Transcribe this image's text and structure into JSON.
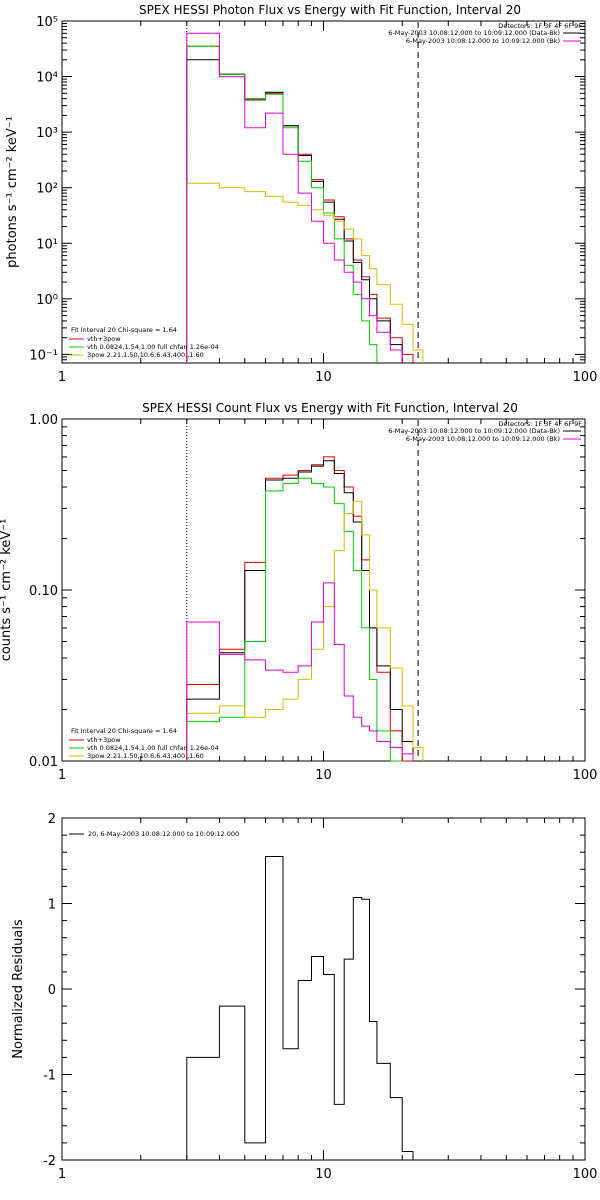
{
  "colors": {
    "total": "#000000",
    "vth_3pow": "#dd0000",
    "vth": "#00cc00",
    "3pow": "#ddbb00",
    "background": "#dd00dd"
  },
  "edges": [
    3.0,
    4.0,
    5.0,
    6.0,
    7.0,
    8.0,
    9.0,
    10.0,
    11.0,
    12.0,
    13.0,
    14.0,
    15.0,
    16.0,
    18.0,
    20.0,
    22.0,
    24.0,
    26.0
  ],
  "chart_data": [
    {
      "type": "line",
      "title": "SPEX HESSI Photon Flux vs Energy with Fit Function, Interval 20",
      "ylabel": "photons s⁻¹ cm⁻² keV⁻¹",
      "xlabel": "",
      "xscale": "log",
      "yscale": "log",
      "xlim": [
        1,
        100
      ],
      "ylim": [
        0.07,
        100000
      ],
      "x_ticks": [
        "1",
        "10",
        "100"
      ],
      "y_ticks": [
        "10⁻¹",
        "10⁰",
        "10¹",
        "10²",
        "10³",
        "10⁴",
        "10⁵"
      ],
      "vlines": {
        "dotted": 3.0,
        "dashed": 23.0
      },
      "legend_right": [
        "Detectors: 1F 3F 4F 6F 9F",
        "6-May-2003 10:08:12.000 to 10:09:12.000 (Data-Bk)",
        "6-May-2003 10:08:12.000 to 10:09:12.000 (Bk)"
      ],
      "legend_left": [
        "Fit Interval 20   Chi-square = 1.64",
        "vth+3pow",
        "vth 0.0824,1.54,1.00  full chfan 1.26e-04",
        "3pow 2.21,1.50,10.6,6.43,400.,1.60"
      ],
      "series": [
        {
          "name": "vth+3pow",
          "color_key": "vth_3pow",
          "values": [
            35000,
            11000,
            4000,
            5000,
            1300,
            400,
            140,
            60,
            30,
            12,
            5,
            2.5,
            1.2,
            0.45,
            0.2,
            0.1,
            null,
            null
          ]
        },
        {
          "name": "Data-Bk",
          "color_key": "total",
          "values": [
            20000,
            11000,
            3800,
            5200,
            1300,
            380,
            130,
            55,
            27,
            11,
            4.5,
            2.2,
            1.0,
            0.4,
            0.15,
            null,
            null,
            null
          ]
        },
        {
          "name": "vth",
          "color_key": "vth",
          "values": [
            35000,
            11000,
            3900,
            4800,
            1200,
            300,
            100,
            35,
            12,
            4,
            1.2,
            0.4,
            0.15,
            null,
            null,
            null,
            null,
            null
          ]
        },
        {
          "name": "3pow",
          "color_key": "3pow",
          "values": [
            120,
            100,
            85,
            70,
            55,
            48,
            40,
            32,
            25,
            18,
            12,
            6,
            3.5,
            1.8,
            0.8,
            0.35,
            0.12,
            null
          ]
        },
        {
          "name": "Bk",
          "color_key": "background",
          "values": [
            60000,
            10000,
            1200,
            2200,
            400,
            80,
            25,
            10,
            5,
            3,
            2,
            1,
            0.5,
            0.25,
            0.12,
            null,
            null,
            null
          ]
        }
      ]
    },
    {
      "type": "line",
      "title": "SPEX HESSI Count Flux vs Energy with Fit Function, Interval 20",
      "ylabel": "counts s⁻¹ cm⁻² keV⁻¹",
      "xlabel": "",
      "xscale": "log",
      "yscale": "log",
      "xlim": [
        1,
        100
      ],
      "ylim": [
        0.01,
        1.0
      ],
      "x_ticks": [
        "1",
        "10",
        "100"
      ],
      "y_ticks": [
        "0.01",
        "0.10",
        "1.00"
      ],
      "vlines": {
        "dotted": 3.0,
        "dashed": 23.0
      },
      "legend_right": [
        "Detectors: 1F 3F 4F 6F 9F",
        "6-May-2003 10:08:12.000 to 10:09:12.000 (Data-Bk)",
        "6-May-2003 10:08:12.000 to 10:09:12.000 (Bk)"
      ],
      "legend_left": [
        "Fit Interval 20   Chi-square = 1.64",
        "vth+3pow",
        "vth 0.0824,1.54,1.00  full chfan 1.26e-04",
        "3pow 2.21,1.50,10.6,6.43,400.,1.60"
      ],
      "series": [
        {
          "name": "vth+3pow",
          "color_key": "vth_3pow",
          "values": [
            0.028,
            0.045,
            0.145,
            0.45,
            0.47,
            0.5,
            0.54,
            0.6,
            0.5,
            0.4,
            0.27,
            0.15,
            0.06,
            0.033,
            0.015,
            0.01,
            null,
            null
          ]
        },
        {
          "name": "Data-Bk",
          "color_key": "total",
          "values": [
            0.023,
            0.043,
            0.13,
            0.44,
            0.45,
            0.49,
            0.53,
            0.57,
            0.48,
            0.37,
            0.25,
            0.13,
            0.06,
            0.036,
            0.02,
            0.013,
            null,
            null
          ]
        },
        {
          "name": "vth",
          "color_key": "vth",
          "values": [
            0.017,
            0.018,
            0.05,
            0.38,
            0.42,
            0.45,
            0.42,
            0.4,
            0.32,
            0.22,
            0.13,
            0.06,
            0.03,
            0.015,
            0.01,
            null,
            null,
            null
          ]
        },
        {
          "name": "3pow",
          "color_key": "3pow",
          "values": [
            0.019,
            0.021,
            0.018,
            0.02,
            0.023,
            0.03,
            0.045,
            0.08,
            0.17,
            0.28,
            0.33,
            0.21,
            0.1,
            0.06,
            0.035,
            0.021,
            0.012,
            null
          ]
        },
        {
          "name": "Bk",
          "color_key": "background",
          "values": [
            0.065,
            0.042,
            0.039,
            0.034,
            0.033,
            0.036,
            0.065,
            0.11,
            0.048,
            0.024,
            0.018,
            0.016,
            0.015,
            0.013,
            0.012,
            0.011,
            null,
            null
          ]
        }
      ]
    },
    {
      "type": "line",
      "title": "",
      "ylabel": "Normalized Residuals",
      "xlabel": "",
      "xscale": "log",
      "yscale": "linear",
      "xlim": [
        1,
        100
      ],
      "ylim": [
        -2,
        2
      ],
      "x_ticks": [
        "1",
        "10",
        "100"
      ],
      "y_ticks": [
        "-2",
        "-1",
        "0",
        "1",
        "2"
      ],
      "legend_left": [
        "20,  6-May-2003 10:08:12.000 to 10:09:12.000"
      ],
      "series": [
        {
          "name": "",
          "color_key": "total",
          "values": [
            -0.8,
            -0.2,
            -1.8,
            1.55,
            -0.7,
            0.1,
            0.38,
            0.17,
            -1.35,
            0.35,
            1.07,
            1.05,
            -0.38,
            -0.87,
            -1.27,
            -1.9,
            null,
            null
          ]
        }
      ]
    }
  ]
}
